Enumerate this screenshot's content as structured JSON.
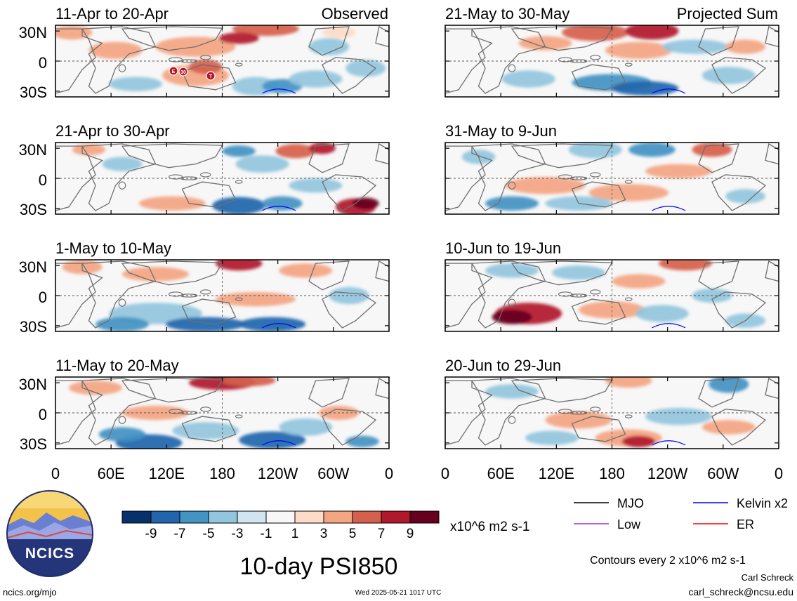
{
  "panels": [
    {
      "title": "11-Apr to 20-Apr",
      "tag": "Observed"
    },
    {
      "title": "21-Apr to 30-Apr",
      "tag": ""
    },
    {
      "title": "1-May to 10-May",
      "tag": ""
    },
    {
      "title": "11-May to 20-May",
      "tag": ""
    },
    {
      "title": "21-May to 30-May",
      "tag": "Projected Sum"
    },
    {
      "title": "31-May to 9-Jun",
      "tag": ""
    },
    {
      "title": "10-Jun to 19-Jun",
      "tag": ""
    },
    {
      "title": "20-Jun to 29-Jun",
      "tag": ""
    }
  ],
  "chart_data": {
    "type": "heatmap",
    "y_ticks": [
      "30N",
      "0",
      "30S"
    ],
    "x_ticks": [
      "0",
      "60E",
      "120E",
      "180",
      "120W",
      "60W",
      "0"
    ],
    "colorbar": {
      "labels": [
        "-9",
        "-7",
        "-5",
        "-3",
        "-1",
        "1",
        "3",
        "5",
        "7",
        "9"
      ],
      "colors": [
        "#08306b",
        "#2166ac",
        "#4393c3",
        "#92c5de",
        "#d1e5f0",
        "#f7f7f7",
        "#fddbc7",
        "#f4a582",
        "#d6604d",
        "#b2182b",
        "#67001f"
      ],
      "units": "x10^6 m2 s-1"
    },
    "storm_markers": [
      "E",
      "30",
      "T"
    ],
    "legend": [
      {
        "label": "MJO",
        "color": "#000000"
      },
      {
        "label": "Kelvin x2",
        "color": "#0000ff"
      },
      {
        "label": "Low",
        "color": "#9b30ff"
      },
      {
        "label": "ER",
        "color": "#ff0000"
      }
    ],
    "contours_note": "Contours every 2 x10^6 m2 s-1",
    "title": "10-day PSI850"
  },
  "logo_text": "NCICS",
  "footer": {
    "left": "ncics.org/mjo",
    "center": "Wed 2025-05-21 1017 UTC",
    "author": "Carl Schreck",
    "email": "carl_schreck@ncsu.edu"
  }
}
